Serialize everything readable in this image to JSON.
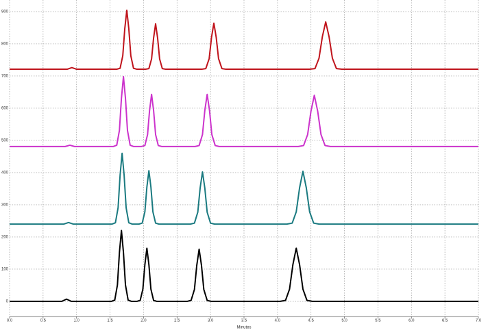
{
  "chart_data": {
    "type": "line",
    "x_label": "Minutes",
    "xlim": [
      0,
      7
    ],
    "ylim": [
      -47,
      936
    ],
    "xticks": [
      {
        "value": 0,
        "label": "0.0"
      },
      0.5,
      {
        "value": 1,
        "label": "1.0"
      },
      1.5,
      {
        "value": 2,
        "label": "2.0"
      },
      2.5,
      {
        "value": 3,
        "label": "3.0"
      },
      3.5,
      {
        "value": 4,
        "label": "4.0"
      },
      4.5,
      {
        "value": 5,
        "label": "5.0"
      },
      5.5,
      {
        "value": 6,
        "label": "6.0"
      },
      6.5,
      {
        "value": 7,
        "label": "7.0"
      }
    ],
    "yticks": [
      0,
      100,
      200,
      300,
      400,
      500,
      600,
      700,
      800,
      900
    ],
    "grid": true,
    "series": [
      {
        "color": "#000000",
        "x": [
          0,
          0.78,
          0.85,
          0.92,
          1.52,
          1.57,
          1.61,
          1.64,
          1.67,
          1.7,
          1.73,
          1.77,
          1.82,
          1.9,
          1.95,
          1.99,
          2.02,
          2.05,
          2.08,
          2.11,
          2.15,
          2.2,
          2.65,
          2.71,
          2.76,
          2.795,
          2.83,
          2.865,
          2.9,
          2.95,
          3.01,
          4.04,
          4.12,
          4.18,
          4.23,
          4.28,
          4.33,
          4.38,
          4.44,
          4.52,
          7
        ],
        "values": [
          0,
          0,
          7,
          0,
          0,
          4,
          51,
          152,
          220,
          152,
          51,
          4,
          0,
          0,
          3,
          38,
          114,
          165,
          114,
          38,
          3,
          0,
          0,
          3,
          37,
          112,
          162,
          112,
          37,
          3,
          0,
          0,
          3,
          38,
          114,
          165,
          114,
          38,
          3,
          0,
          0
        ]
      },
      {
        "color": "#1a7a80",
        "x": [
          0,
          0.81,
          0.88,
          0.95,
          1.53,
          1.58,
          1.62,
          1.65,
          1.68,
          1.71,
          1.74,
          1.78,
          1.83,
          1.93,
          1.98,
          2.02,
          2.05,
          2.08,
          2.11,
          2.14,
          2.18,
          2.23,
          2.7,
          2.76,
          2.81,
          2.845,
          2.88,
          2.915,
          2.95,
          3.0,
          3.06,
          4.14,
          4.22,
          4.28,
          4.33,
          4.38,
          4.43,
          4.48,
          4.54,
          4.62,
          7
        ],
        "values": [
          240,
          240,
          245,
          240,
          240,
          244,
          291,
          392,
          460,
          392,
          291,
          244,
          240,
          240,
          243,
          278,
          355,
          406,
          355,
          278,
          243,
          240,
          240,
          243,
          277,
          352,
          402,
          352,
          277,
          243,
          240,
          240,
          243,
          278,
          353,
          404,
          353,
          278,
          243,
          240,
          240
        ]
      },
      {
        "color": "#cc33cc",
        "x": [
          0,
          0.83,
          0.9,
          0.97,
          1.55,
          1.6,
          1.64,
          1.67,
          1.7,
          1.73,
          1.76,
          1.8,
          1.85,
          1.97,
          2.02,
          2.06,
          2.09,
          2.12,
          2.15,
          2.18,
          2.22,
          2.27,
          2.77,
          2.83,
          2.88,
          2.915,
          2.95,
          2.985,
          3.02,
          3.07,
          3.13,
          4.31,
          4.39,
          4.45,
          4.5,
          4.55,
          4.6,
          4.65,
          4.71,
          4.79,
          7
        ],
        "values": [
          481,
          481,
          485,
          481,
          481,
          485,
          531,
          631,
          698,
          631,
          531,
          485,
          481,
          481,
          484,
          518,
          593,
          643,
          593,
          518,
          484,
          481,
          481,
          484,
          518,
          593,
          643,
          593,
          518,
          484,
          481,
          481,
          484,
          518,
          591,
          640,
          591,
          518,
          484,
          481,
          481
        ]
      },
      {
        "color": "#c0141c",
        "x": [
          0,
          0.86,
          0.93,
          1.0,
          1.6,
          1.65,
          1.69,
          1.72,
          1.75,
          1.78,
          1.81,
          1.85,
          1.9,
          2.03,
          2.08,
          2.12,
          2.15,
          2.18,
          2.21,
          2.24,
          2.28,
          2.33,
          2.87,
          2.93,
          2.98,
          3.015,
          3.05,
          3.085,
          3.12,
          3.17,
          3.23,
          4.48,
          4.56,
          4.62,
          4.67,
          4.72,
          4.77,
          4.82,
          4.88,
          4.96,
          7
        ],
        "values": [
          721,
          721,
          726,
          721,
          721,
          724,
          763,
          847,
          904,
          847,
          763,
          724,
          721,
          721,
          723,
          753,
          818,
          862,
          818,
          753,
          723,
          721,
          721,
          723,
          754,
          820,
          864,
          820,
          754,
          723,
          721,
          721,
          723,
          755,
          822,
          868,
          822,
          755,
          723,
          721,
          721
        ]
      }
    ]
  }
}
